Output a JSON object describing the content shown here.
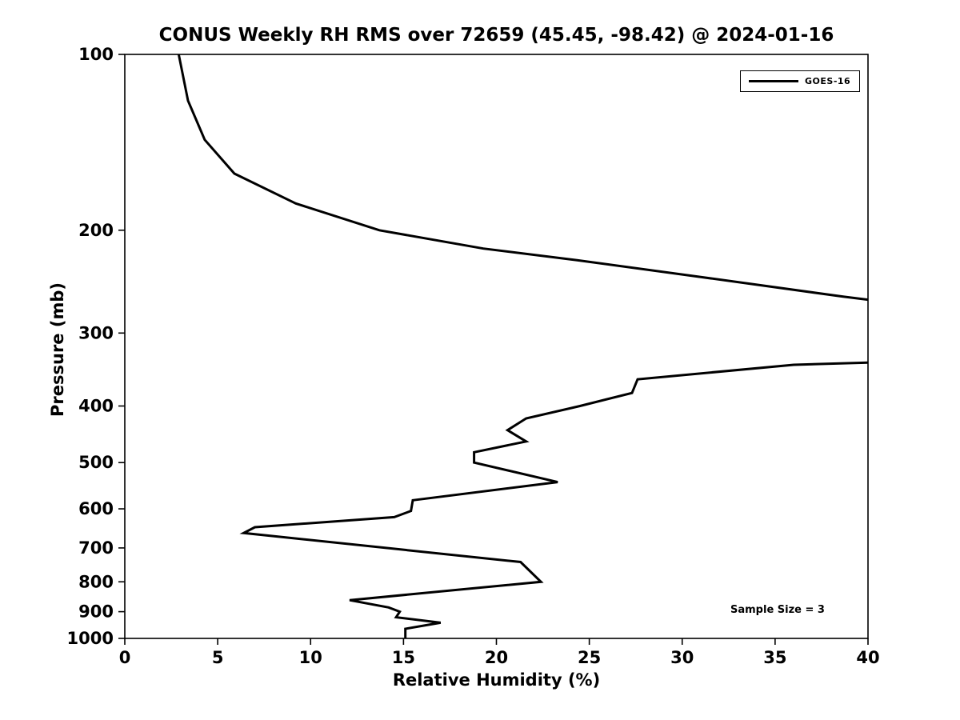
{
  "page": {
    "background": "#ffffff",
    "text_color": "#000000"
  },
  "chart_data": {
    "type": "line",
    "title": "CONUS Weekly RH RMS over 72659 (45.45, -98.42) @ 2024-01-16",
    "xlabel": "Relative Humidity (%)",
    "ylabel": "Pressure (mb)",
    "xlim": [
      0,
      40
    ],
    "ylim": [
      100,
      1000
    ],
    "y_scale": "log",
    "y_inverted": true,
    "grid": false,
    "x_ticks": [
      0,
      5,
      10,
      15,
      20,
      25,
      30,
      35,
      40
    ],
    "y_ticks": [
      100,
      200,
      300,
      400,
      500,
      600,
      700,
      800,
      900,
      1000
    ],
    "frame_color": "#000000",
    "legend": {
      "position": "top-right",
      "entries": [
        {
          "label": "GOES-16",
          "color": "#000000",
          "line_width": 3
        }
      ]
    },
    "annotations": [
      {
        "text": "Sample Size = 3",
        "position": "lower-right"
      }
    ],
    "series": [
      {
        "name": "GOES-16",
        "color": "#000000",
        "line_width": 3,
        "note": "points are [relative_humidity_percent, pressure_mb]; null marks the gap where the trace exceeds 40% and is clipped off-scale between ~263 mb and ~337 mb",
        "points": [
          [
            2.9,
            100
          ],
          [
            3.4,
            120
          ],
          [
            4.3,
            140
          ],
          [
            5.9,
            160
          ],
          [
            9.2,
            180
          ],
          [
            13.7,
            200
          ],
          [
            19.3,
            215
          ],
          [
            24.3,
            225
          ],
          [
            30.8,
            240
          ],
          [
            38.7,
            260
          ],
          [
            40.0,
            263
          ],
          null,
          [
            40.0,
            337
          ],
          [
            36.0,
            340
          ],
          [
            27.6,
            360
          ],
          [
            27.3,
            380
          ],
          [
            24.5,
            400
          ],
          [
            21.6,
            420
          ],
          [
            20.6,
            440
          ],
          [
            21.6,
            460
          ],
          [
            18.8,
            480
          ],
          [
            18.8,
            500
          ],
          [
            23.3,
            540
          ],
          [
            15.5,
            580
          ],
          [
            15.4,
            605
          ],
          [
            14.5,
            620
          ],
          [
            7.0,
            645
          ],
          [
            6.4,
            660
          ],
          [
            21.3,
            740
          ],
          [
            22.4,
            800
          ],
          [
            12.1,
            860
          ],
          [
            14.2,
            885
          ],
          [
            14.8,
            900
          ],
          [
            14.6,
            920
          ],
          [
            17.0,
            940
          ],
          [
            15.1,
            963
          ],
          [
            15.1,
            1000
          ]
        ]
      }
    ]
  }
}
